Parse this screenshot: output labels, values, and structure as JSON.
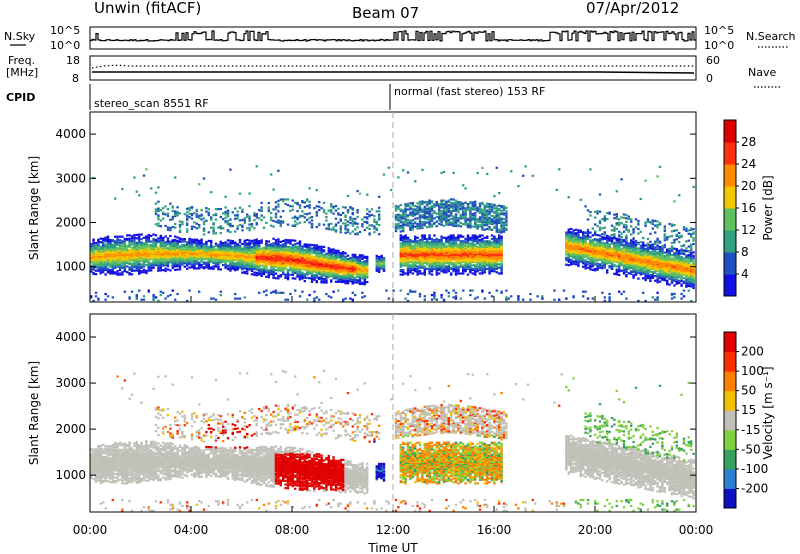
{
  "header": {
    "radar": "Unwin  (fitACF)",
    "beam": "Beam 07",
    "date": "07/Apr/2012"
  },
  "panels": {
    "nsky_label": "N.Sky",
    "nsky_ticks": [
      "10^5",
      "10^0"
    ],
    "nsearch_label": "N.Search",
    "nsearch_ticks": [
      "10^5",
      "10^0"
    ],
    "freq_label_1": "Freq.",
    "freq_label_2": "[MHz]",
    "freq_ticks": [
      "18",
      "8"
    ],
    "nave_label": "Nave",
    "nave_ticks": [
      "60",
      "0"
    ],
    "cpid_label": "CPID",
    "cpid_1": "stereo_scan 8551 RF",
    "cpid_2": "normal (fast stereo) 153 RF"
  },
  "chart_data": [
    {
      "type": "heatmap",
      "name": "power",
      "ylabel": "Slant Range [km]",
      "ylim": [
        200,
        4500
      ],
      "yticks": [
        1000,
        2000,
        3000,
        4000
      ],
      "xlim": [
        0,
        24
      ],
      "colorbar_label": "Power [dB]",
      "colorbar_ticks": [
        "4",
        "8",
        "12",
        "16",
        "20",
        "24",
        "28"
      ],
      "colorbar_colors": [
        "#1010e0",
        "#2050c0",
        "#30a080",
        "#60c060",
        "#f0c800",
        "#ff8c00",
        "#ff3010",
        "#dd0000"
      ]
    },
    {
      "type": "heatmap",
      "name": "velocity",
      "ylabel": "Slant Range [km]",
      "ylim": [
        200,
        4500
      ],
      "yticks": [
        1000,
        2000,
        3000,
        4000
      ],
      "xlim": [
        0,
        24
      ],
      "xlabel": "Time UT",
      "xticks": [
        "00:00",
        "04:00",
        "08:00",
        "12:00",
        "16:00",
        "20:00",
        "00:00"
      ],
      "colorbar_label": "Velocity [m s⁻¹]",
      "colorbar_ticks": [
        "200",
        "100",
        "50",
        "15",
        "-15",
        "-50",
        "-100",
        "-200"
      ],
      "colorbar_colors": [
        "#1010c0",
        "#2e7fd0",
        "#3aa060",
        "#80d040",
        "#c0c0b8",
        "#f0c000",
        "#ff8000",
        "#ff3000",
        "#e00000"
      ]
    }
  ],
  "colors": {
    "power": [
      "#1010e0",
      "#2050c0",
      "#30a080",
      "#60c060",
      "#f0c800",
      "#ff8c00",
      "#ff3010",
      "#dd0000"
    ],
    "velocity": [
      "#1010c0",
      "#2e7fd0",
      "#3aa060",
      "#80d040",
      "#c0c0b8",
      "#f0c000",
      "#ff8000",
      "#ff3000",
      "#e00000"
    ]
  }
}
